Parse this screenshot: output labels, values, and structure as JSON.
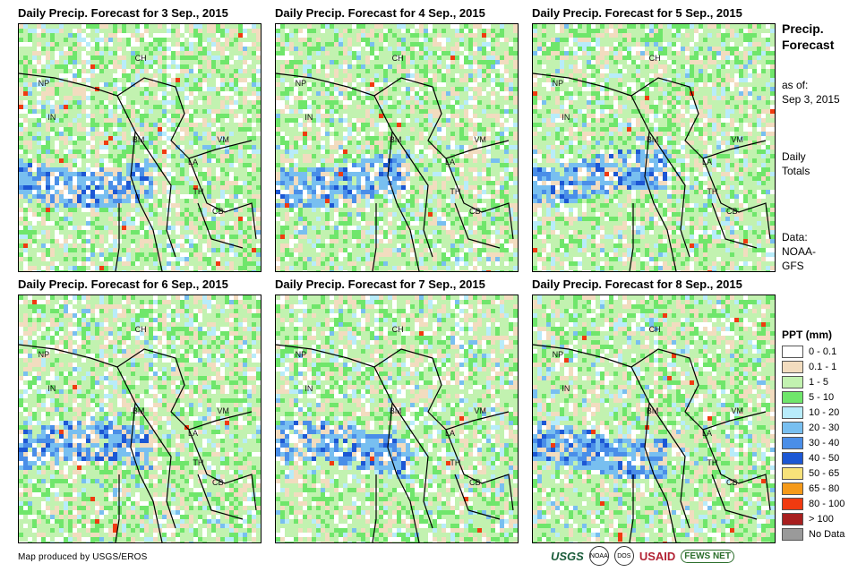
{
  "panels": [
    {
      "title": "Daily Precip. Forecast for 3 Sep., 2015"
    },
    {
      "title": "Daily Precip. Forecast for 4 Sep., 2015"
    },
    {
      "title": "Daily Precip. Forecast for 5 Sep., 2015"
    },
    {
      "title": "Daily Precip. Forecast for 6 Sep., 2015"
    },
    {
      "title": "Daily Precip. Forecast for 7 Sep., 2015"
    },
    {
      "title": "Daily Precip. Forecast for 8 Sep., 2015"
    }
  ],
  "country_labels": [
    "CH",
    "NP",
    "IN",
    "BM",
    "LA",
    "VM",
    "TH",
    "CB"
  ],
  "sidebar": {
    "title_line1": "Precip.",
    "title_line2": "Forecast",
    "asof_line1": "as of:",
    "asof_line2": "Sep 3, 2015",
    "totals_line1": "Daily",
    "totals_line2": "Totals",
    "data_line1": "Data:",
    "data_line2": "NOAA-",
    "data_line3": "GFS"
  },
  "legend": {
    "title": "PPT (mm)",
    "items": [
      {
        "label": "0 - 0.1",
        "color": "#ffffff"
      },
      {
        "label": "0.1 - 1",
        "color": "#f2dcbf"
      },
      {
        "label": "1 - 5",
        "color": "#c2f2b0"
      },
      {
        "label": "5 - 10",
        "color": "#6fe66b"
      },
      {
        "label": "10 - 20",
        "color": "#b8ecfa"
      },
      {
        "label": "20 - 30",
        "color": "#78bff0"
      },
      {
        "label": "30 - 40",
        "color": "#4a8ee8"
      },
      {
        "label": "40 - 50",
        "color": "#1c57d4"
      },
      {
        "label": "50 - 65",
        "color": "#f7e27a"
      },
      {
        "label": "65 - 80",
        "color": "#f59a1a"
      },
      {
        "label": "80 - 100",
        "color": "#f03a10"
      },
      {
        "label": "> 100",
        "color": "#a81f1f"
      },
      {
        "label": "No Data",
        "color": "#9a9a9a"
      }
    ]
  },
  "footer": {
    "credit": "Map produced by USGS/EROS"
  },
  "logos": {
    "usgs": "USGS",
    "noaa": "NOAA",
    "dos": "DOS",
    "usaid": "USAID",
    "fews": "FEWS NET"
  }
}
